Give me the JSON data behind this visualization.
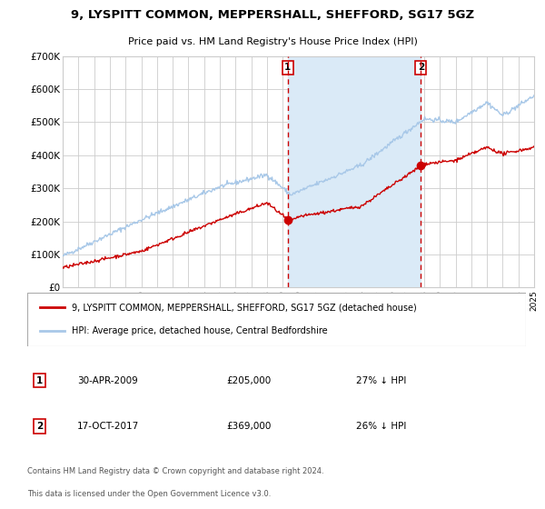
{
  "title": "9, LYSPITT COMMON, MEPPERSHALL, SHEFFORD, SG17 5GZ",
  "subtitle": "Price paid vs. HM Land Registry's House Price Index (HPI)",
  "ylim": [
    0,
    700000
  ],
  "yticks": [
    0,
    100000,
    200000,
    300000,
    400000,
    500000,
    600000,
    700000
  ],
  "ytick_labels": [
    "£0",
    "£100K",
    "£200K",
    "£300K",
    "£400K",
    "£500K",
    "£600K",
    "£700K"
  ],
  "x_start_year": 1995,
  "x_end_year": 2025,
  "hpi_color": "#a8c8e8",
  "sale_color": "#cc0000",
  "sale1_date": 2009.33,
  "sale1_price": 205000,
  "sale2_date": 2017.79,
  "sale2_price": 369000,
  "shade_color": "#daeaf7",
  "dashed_color": "#cc0000",
  "background_color": "#ffffff",
  "grid_color": "#cccccc",
  "legend_label1": "9, LYSPITT COMMON, MEPPERSHALL, SHEFFORD, SG17 5GZ (detached house)",
  "legend_label2": "HPI: Average price, detached house, Central Bedfordshire",
  "footer1": "Contains HM Land Registry data © Crown copyright and database right 2024.",
  "footer2": "This data is licensed under the Open Government Licence v3.0.",
  "table_row1": [
    "1",
    "30-APR-2009",
    "£205,000",
    "27% ↓ HPI"
  ],
  "table_row2": [
    "2",
    "17-OCT-2017",
    "£369,000",
    "26% ↓ HPI"
  ]
}
